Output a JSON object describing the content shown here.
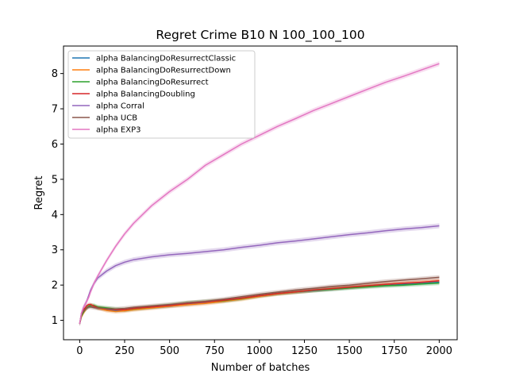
{
  "chart_data": {
    "type": "line",
    "title": "Regret Crime B10 N 100_100_100",
    "xlabel": "Number of batches",
    "ylabel": "Regret",
    "xlim": [
      -90,
      2100
    ],
    "ylim": [
      0.45,
      8.78
    ],
    "xticks": [
      0,
      250,
      500,
      750,
      1000,
      1250,
      1500,
      1750,
      2000
    ],
    "yticks": [
      1,
      2,
      3,
      4,
      5,
      6,
      7,
      8
    ],
    "grid": false,
    "legend_position": "upper-left",
    "x": [
      0,
      10,
      20,
      30,
      40,
      50,
      60,
      80,
      100,
      150,
      200,
      250,
      300,
      400,
      500,
      600,
      700,
      800,
      900,
      1000,
      1100,
      1200,
      1300,
      1400,
      1500,
      1600,
      1700,
      1800,
      1900,
      2000
    ],
    "series": [
      {
        "name": "alpha BalancingDoResurrectClassic",
        "color": "#1f77b4",
        "band": 0.05,
        "values": [
          0.9,
          1.15,
          1.25,
          1.3,
          1.35,
          1.38,
          1.4,
          1.38,
          1.35,
          1.3,
          1.27,
          1.28,
          1.32,
          1.36,
          1.4,
          1.45,
          1.5,
          1.55,
          1.62,
          1.7,
          1.76,
          1.8,
          1.84,
          1.88,
          1.92,
          1.96,
          1.99,
          2.02,
          2.05,
          2.08
        ]
      },
      {
        "name": "alpha BalancingDoResurrectDown",
        "color": "#ff7f0e",
        "band": 0.06,
        "values": [
          0.9,
          1.1,
          1.2,
          1.28,
          1.35,
          1.4,
          1.42,
          1.4,
          1.35,
          1.28,
          1.25,
          1.27,
          1.3,
          1.35,
          1.4,
          1.44,
          1.48,
          1.54,
          1.6,
          1.68,
          1.75,
          1.8,
          1.85,
          1.9,
          1.94,
          1.98,
          2.02,
          2.05,
          2.08,
          2.12
        ]
      },
      {
        "name": "alpha BalancingDoResurrect",
        "color": "#2ca02c",
        "band": 0.06,
        "values": [
          0.9,
          1.12,
          1.22,
          1.3,
          1.36,
          1.4,
          1.42,
          1.42,
          1.38,
          1.35,
          1.32,
          1.3,
          1.33,
          1.38,
          1.43,
          1.5,
          1.53,
          1.56,
          1.62,
          1.7,
          1.76,
          1.81,
          1.85,
          1.88,
          1.92,
          1.95,
          1.98,
          2.0,
          2.03,
          2.06
        ]
      },
      {
        "name": "alpha BalancingDoubling",
        "color": "#d62728",
        "band": 0.05,
        "values": [
          0.9,
          1.2,
          1.3,
          1.35,
          1.42,
          1.45,
          1.45,
          1.4,
          1.36,
          1.32,
          1.3,
          1.3,
          1.34,
          1.38,
          1.42,
          1.48,
          1.52,
          1.57,
          1.63,
          1.7,
          1.76,
          1.81,
          1.86,
          1.9,
          1.94,
          1.98,
          2.02,
          2.05,
          2.08,
          2.12
        ]
      },
      {
        "name": "alpha Corral",
        "color": "#9467bd",
        "band": 0.07,
        "values": [
          0.9,
          1.2,
          1.35,
          1.45,
          1.55,
          1.7,
          1.85,
          2.05,
          2.2,
          2.4,
          2.55,
          2.65,
          2.72,
          2.8,
          2.86,
          2.9,
          2.95,
          3.0,
          3.07,
          3.13,
          3.2,
          3.25,
          3.31,
          3.37,
          3.43,
          3.48,
          3.54,
          3.59,
          3.63,
          3.68
        ]
      },
      {
        "name": "alpha UCB",
        "color": "#8c564b",
        "band": 0.06,
        "values": [
          0.9,
          1.15,
          1.25,
          1.3,
          1.35,
          1.38,
          1.38,
          1.36,
          1.35,
          1.33,
          1.32,
          1.34,
          1.37,
          1.41,
          1.45,
          1.5,
          1.54,
          1.6,
          1.67,
          1.74,
          1.8,
          1.86,
          1.91,
          1.96,
          2.0,
          2.05,
          2.1,
          2.14,
          2.18,
          2.22
        ]
      },
      {
        "name": "alpha EXP3",
        "color": "#e377c2",
        "band": 0.07,
        "values": [
          0.9,
          1.2,
          1.35,
          1.45,
          1.55,
          1.65,
          1.8,
          2.05,
          2.25,
          2.7,
          3.1,
          3.45,
          3.75,
          4.25,
          4.65,
          5.0,
          5.4,
          5.7,
          6.0,
          6.25,
          6.5,
          6.72,
          6.95,
          7.15,
          7.35,
          7.55,
          7.75,
          7.92,
          8.1,
          8.28
        ]
      }
    ]
  }
}
